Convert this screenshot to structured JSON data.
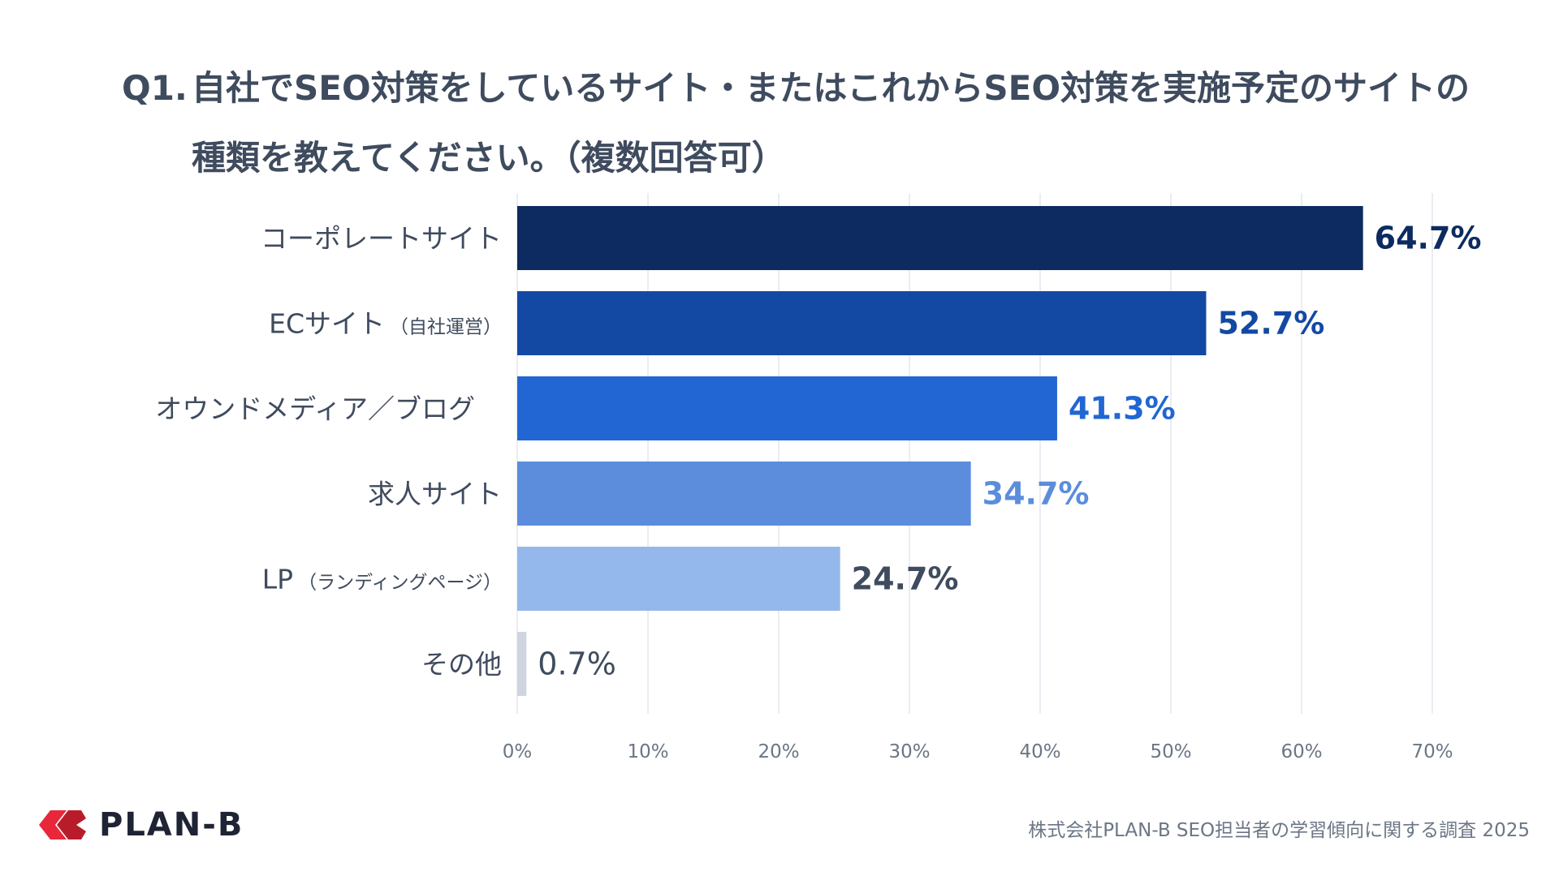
{
  "title": {
    "prefix": "Q1.",
    "line1": "自社でSEO対策をしているサイト・またはこれからSEO対策を実施予定のサイトの",
    "line2": "種類を教えてください。（複数回答可）"
  },
  "chart_data": {
    "type": "bar",
    "orientation": "horizontal",
    "categories": [
      {
        "main": "コーポレートサイト",
        "sub": ""
      },
      {
        "main": "ECサイト",
        "sub": "（自社運営）"
      },
      {
        "main": "オウンドメディア／ブログ",
        "sub": ""
      },
      {
        "main": "求人サイト",
        "sub": ""
      },
      {
        "main": "LP",
        "sub": "（ランディングページ）"
      },
      {
        "main": "その他",
        "sub": ""
      }
    ],
    "values": [
      64.7,
      52.7,
      41.3,
      34.7,
      24.7,
      0.7
    ],
    "value_labels": [
      "64.7%",
      "52.7%",
      "41.3%",
      "34.7%",
      "24.7%",
      "0.7%"
    ],
    "bar_colors": [
      "#0d2b60",
      "#1349a3",
      "#2166d3",
      "#5b8ddc",
      "#95b8ec",
      "#cfd5df"
    ],
    "label_colors": [
      "#0d2b60",
      "#1349a3",
      "#2166d3",
      "#5b8ddc",
      "#3f4b5e",
      "#3f4b5e"
    ],
    "xlim": [
      0,
      70
    ],
    "xticks": [
      0,
      10,
      20,
      30,
      40,
      50,
      60,
      70
    ],
    "xtick_labels": [
      "0%",
      "10%",
      "20%",
      "30%",
      "40%",
      "50%",
      "60%",
      "70%"
    ],
    "grid": true
  },
  "logo": {
    "text": "PLAN-B",
    "color": "#e8283a"
  },
  "source": "株式会社PLAN-B  SEO担当者の学習傾向に関する調査 2025"
}
